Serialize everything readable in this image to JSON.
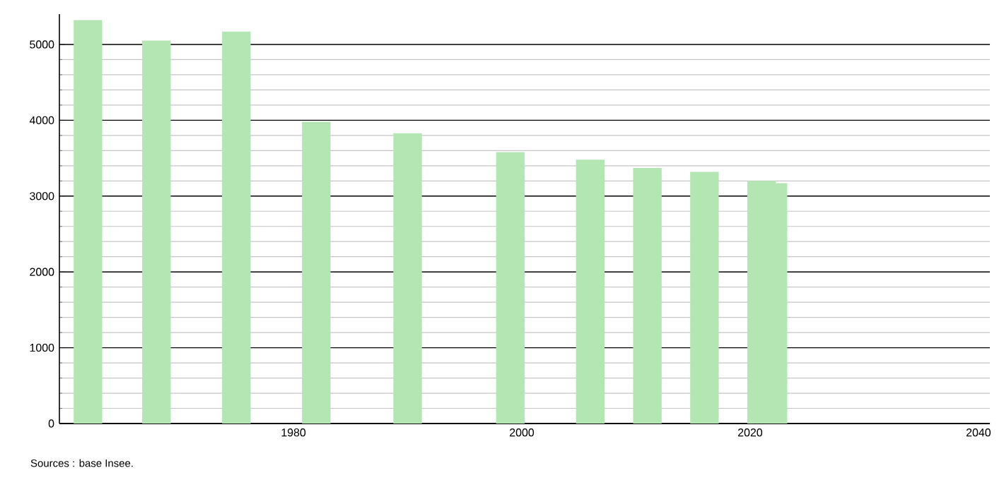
{
  "chart_data": {
    "type": "bar",
    "x": [
      1962,
      1968,
      1975,
      1982,
      1990,
      1999,
      2006,
      2011,
      2016,
      2021,
      2022
    ],
    "values": [
      5320,
      5050,
      5170,
      3980,
      3830,
      3580,
      3480,
      3370,
      3320,
      3200,
      3170
    ],
    "color": "#b3e6b3",
    "xlim": [
      1959.5,
      2041
    ],
    "ylim": [
      0,
      5400
    ],
    "xticks": [
      1980,
      2000,
      2020,
      2040
    ],
    "yticks": [
      0,
      1000,
      2000,
      3000,
      4000,
      5000
    ],
    "grid": "y",
    "annotations": [
      "Sources : base Insee."
    ]
  }
}
